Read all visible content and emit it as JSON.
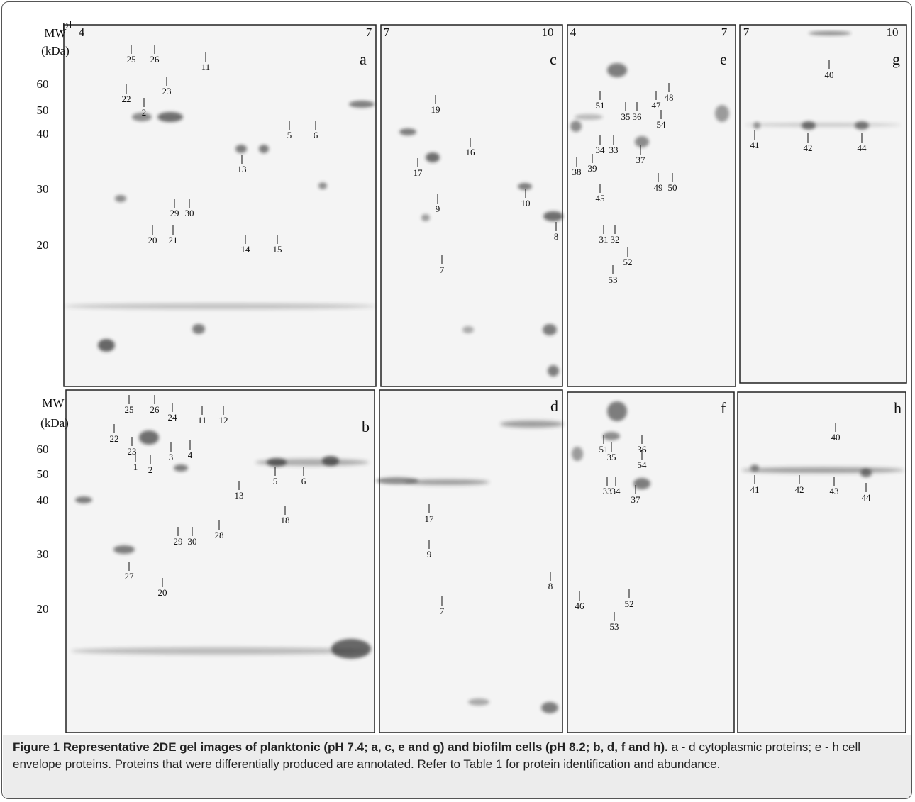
{
  "figure": {
    "pi_label": "pI",
    "mw_axes": [
      {
        "title": "MW",
        "unit": "(kDa)",
        "ticks": [
          "60",
          "50",
          "40",
          "30",
          "20"
        ]
      },
      {
        "title": "MW",
        "unit": "(kDa)",
        "ticks": [
          "60",
          "50",
          "40",
          "30",
          "20"
        ]
      }
    ],
    "panels": [
      {
        "letter": "a",
        "pi": [
          "4",
          "7"
        ],
        "spots": [
          "25",
          "26",
          "11",
          "22",
          "23",
          "2",
          "5",
          "6",
          "13",
          "29",
          "30",
          "20",
          "21",
          "14",
          "15"
        ]
      },
      {
        "letter": "c",
        "pi": [
          "7",
          "10"
        ],
        "spots": [
          "19",
          "16",
          "17",
          "9",
          "10",
          "8",
          "7"
        ]
      },
      {
        "letter": "e",
        "pi": [
          "4",
          "7"
        ],
        "spots": [
          "48",
          "51",
          "47",
          "35",
          "36",
          "54",
          "34",
          "33",
          "37",
          "38",
          "39",
          "49",
          "50",
          "45",
          "31",
          "32",
          "52",
          "53"
        ]
      },
      {
        "letter": "g",
        "pi": [
          "7",
          "10"
        ],
        "spots": [
          "40",
          "41",
          "42",
          "44"
        ]
      },
      {
        "letter": "b",
        "spots": [
          "25",
          "26",
          "24",
          "11",
          "12",
          "22",
          "23",
          "1",
          "2",
          "3",
          "4",
          "5",
          "6",
          "13",
          "18",
          "29",
          "30",
          "28",
          "27",
          "20"
        ]
      },
      {
        "letter": "d",
        "spots": [
          "17",
          "9",
          "8",
          "7"
        ]
      },
      {
        "letter": "f",
        "spots": [
          "51",
          "36",
          "35",
          "54",
          "33",
          "34",
          "37",
          "46",
          "52",
          "53"
        ]
      },
      {
        "letter": "h",
        "spots": [
          "40",
          "41",
          "42",
          "43",
          "44"
        ]
      }
    ]
  },
  "caption": {
    "label": "Figure 1",
    "title": "Representative 2DE gel images of planktonic (pH 7.4; a, c, e and g) and biofilm cells (pH 8.2; b, d, f and h).",
    "text": "a - d cytoplasmic proteins; e - h cell envelope proteins. Proteins that were differentially produced are annotated. Refer to Table 1 for protein identification and abundance."
  }
}
